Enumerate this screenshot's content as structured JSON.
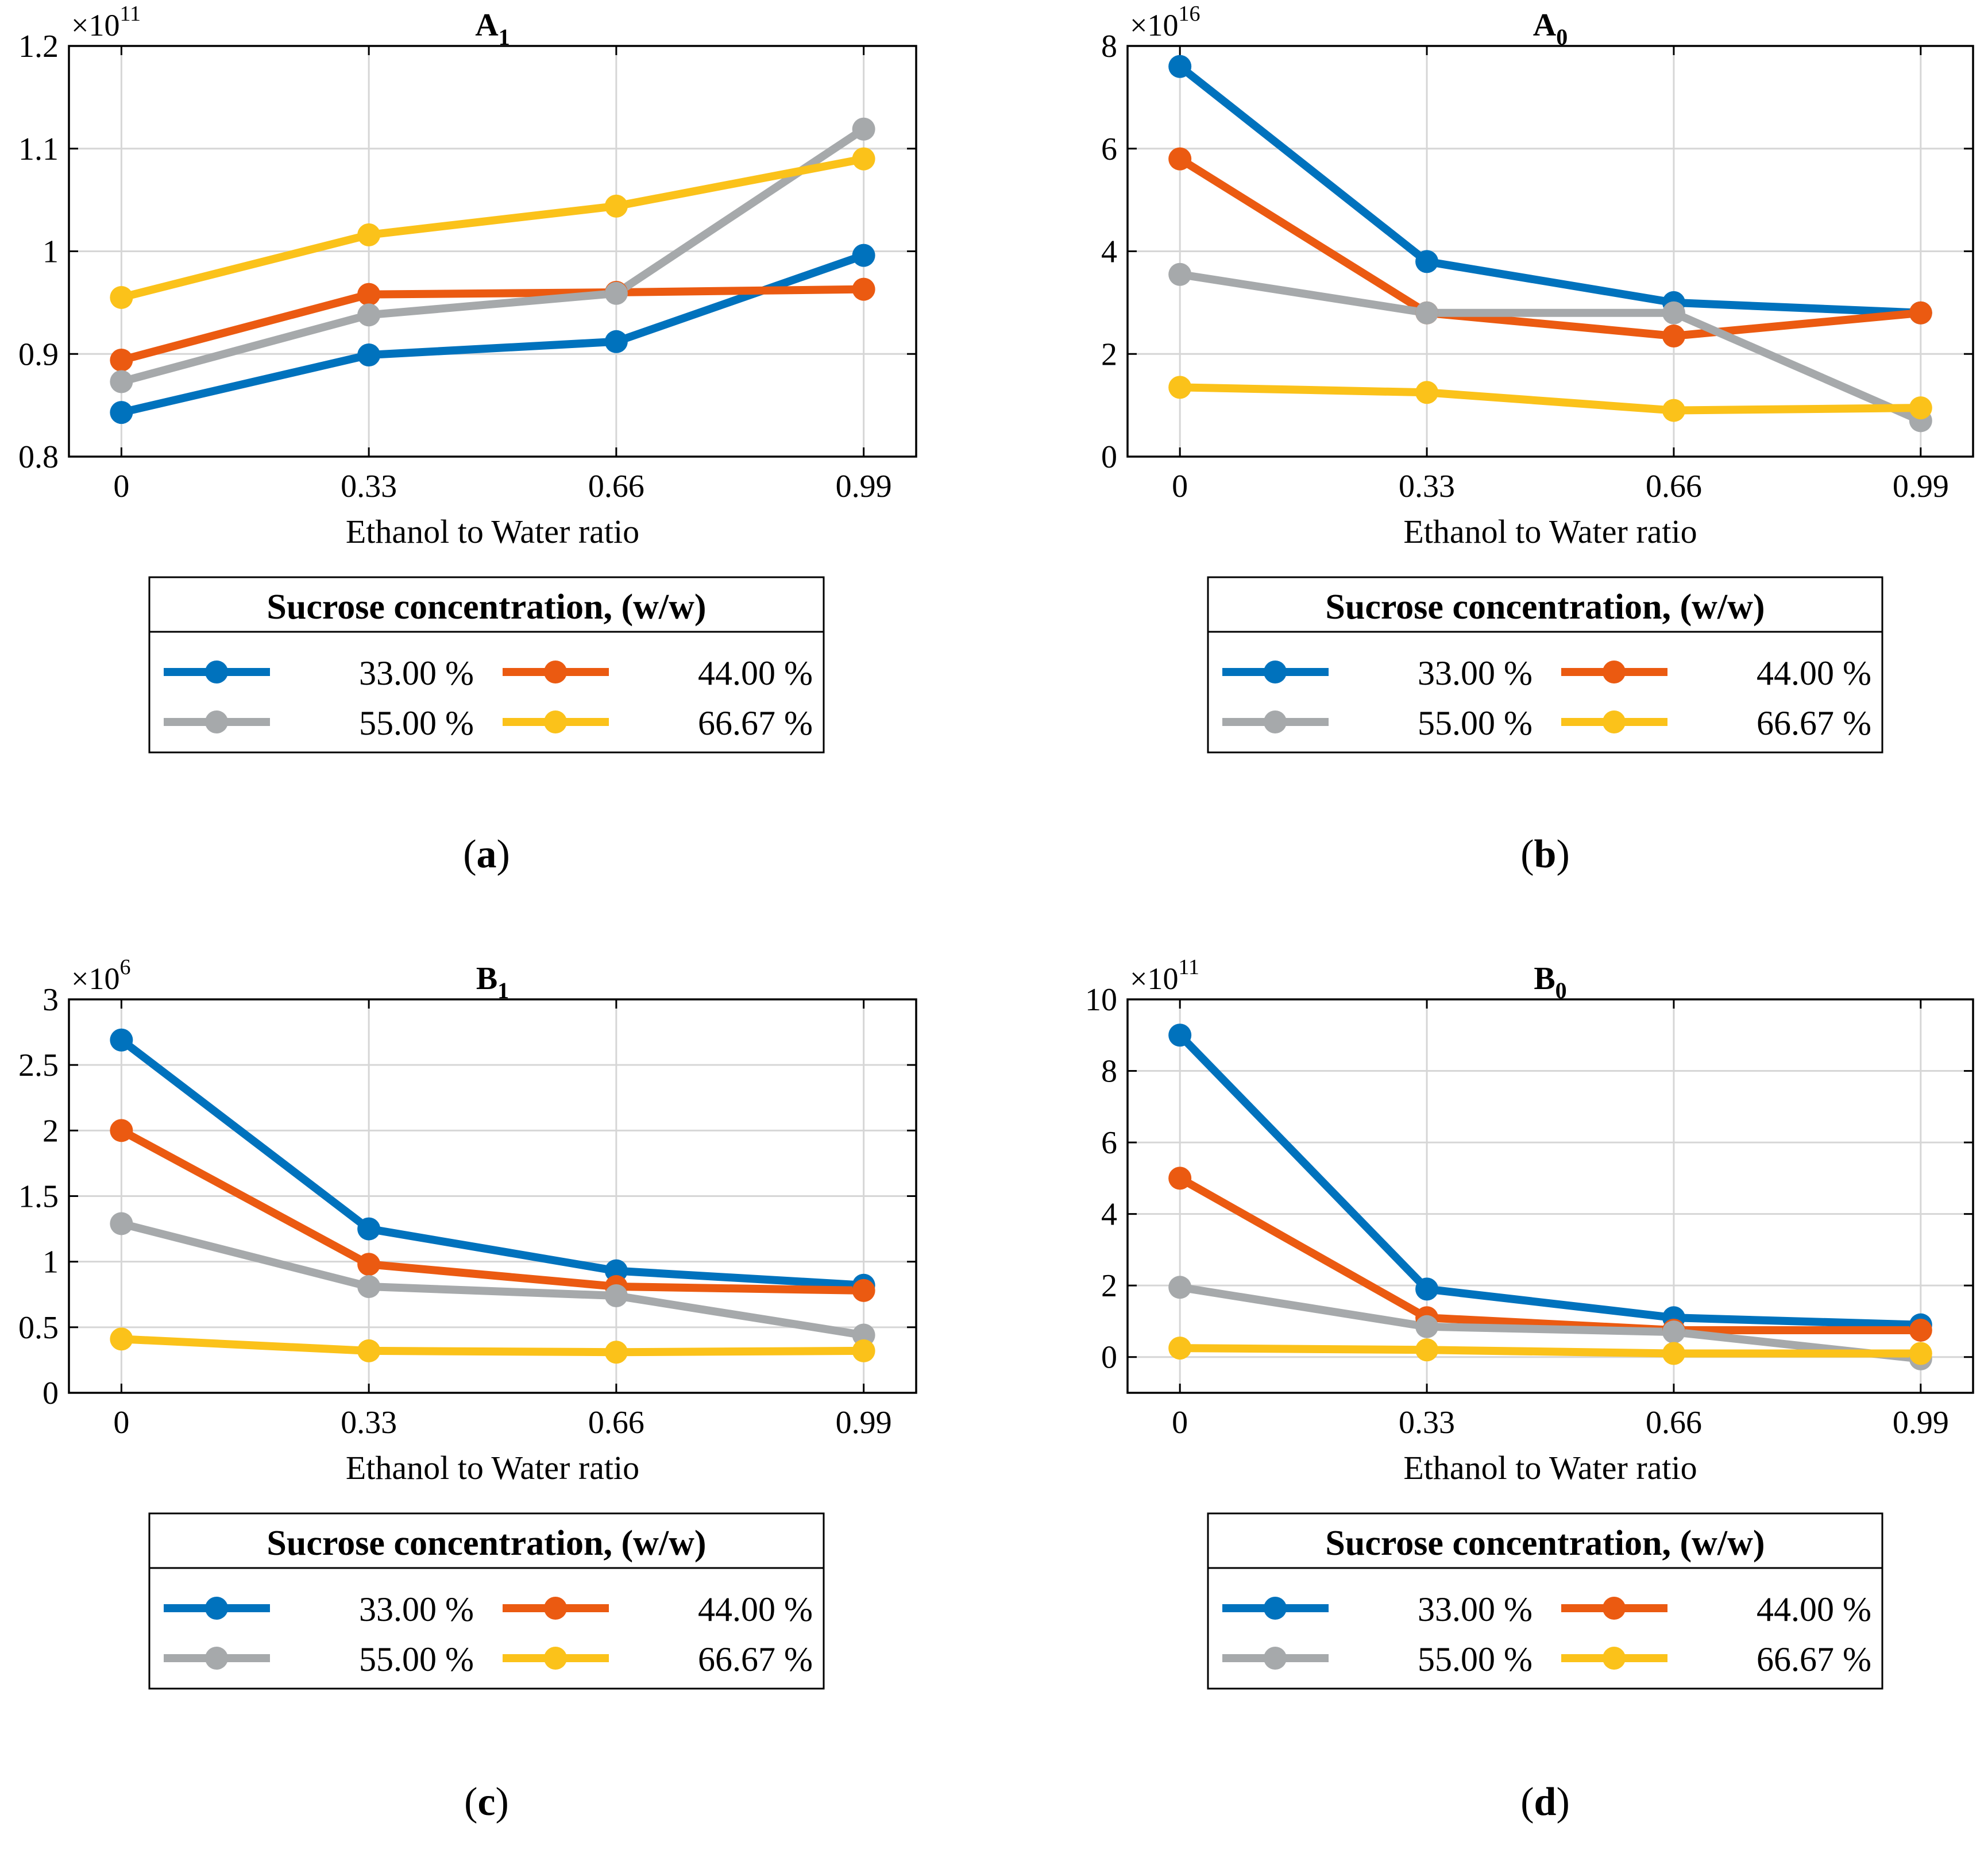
{
  "figure": {
    "xlabel": "Ethanol to Water ratio",
    "legend_title": "Sucrose concentration, (w/w)",
    "series_colors": [
      "#0072BD",
      "#EB5A11",
      "#A6A9AB",
      "#FBC21A"
    ]
  },
  "chart_data": [
    {
      "type": "line",
      "panel_label": "a",
      "title_base": "A",
      "title_sub": "1",
      "exponent_base": "×10",
      "exponent": "11",
      "xlabel": "Ethanol to Water ratio",
      "ylabel": "",
      "categories": [
        "0",
        "0.33",
        "0.66",
        "0.99"
      ],
      "x": [
        0,
        0.33,
        0.66,
        0.99
      ],
      "xlim": [
        -0.07,
        1.06
      ],
      "ylim": [
        0.8,
        1.2
      ],
      "yticks": [
        0.8,
        0.9,
        1.0,
        1.1,
        1.2
      ],
      "yticklabels": [
        "0.8",
        "0.9",
        "1",
        "1.1",
        "1.2"
      ],
      "grid": true,
      "legend_title": "Sucrose concentration, (w/w)",
      "legend_position": "below",
      "series": [
        {
          "name": "33.00 %",
          "values": [
            0.843,
            0.899,
            0.912,
            0.996
          ]
        },
        {
          "name": "44.00 %",
          "values": [
            0.894,
            0.958,
            0.96,
            0.963
          ]
        },
        {
          "name": "55.00 %",
          "values": [
            0.873,
            0.938,
            0.959,
            1.119
          ]
        },
        {
          "name": "66.67 %",
          "values": [
            0.955,
            1.016,
            1.044,
            1.09
          ]
        }
      ]
    },
    {
      "type": "line",
      "panel_label": "b",
      "title_base": "A",
      "title_sub": "0",
      "exponent_base": "×10",
      "exponent": "16",
      "xlabel": "Ethanol to Water ratio",
      "ylabel": "",
      "categories": [
        "0",
        "0.33",
        "0.66",
        "0.99"
      ],
      "x": [
        0,
        0.33,
        0.66,
        0.99
      ],
      "xlim": [
        -0.07,
        1.06
      ],
      "ylim": [
        0,
        8
      ],
      "yticks": [
        0,
        2,
        4,
        6,
        8
      ],
      "yticklabels": [
        "0",
        "2",
        "4",
        "6",
        "8"
      ],
      "grid": true,
      "legend_title": "Sucrose concentration, (w/w)",
      "legend_position": "below",
      "series": [
        {
          "name": "33.00 %",
          "values": [
            7.6,
            3.8,
            3.0,
            2.8
          ]
        },
        {
          "name": "44.00 %",
          "values": [
            5.8,
            2.8,
            2.35,
            2.8
          ]
        },
        {
          "name": "55.00 %",
          "values": [
            3.55,
            2.8,
            2.8,
            0.7
          ]
        },
        {
          "name": "66.67 %",
          "values": [
            1.35,
            1.25,
            0.9,
            0.95
          ]
        }
      ]
    },
    {
      "type": "line",
      "panel_label": "c",
      "title_base": "B",
      "title_sub": "1",
      "exponent_base": "×10",
      "exponent": "6",
      "xlabel": "Ethanol to Water ratio",
      "ylabel": "",
      "categories": [
        "0",
        "0.33",
        "0.66",
        "0.99"
      ],
      "x": [
        0,
        0.33,
        0.66,
        0.99
      ],
      "xlim": [
        -0.07,
        1.06
      ],
      "ylim": [
        0,
        3
      ],
      "yticks": [
        0,
        0.5,
        1,
        1.5,
        2,
        2.5,
        3
      ],
      "yticklabels": [
        "0",
        "0.5",
        "1",
        "1.5",
        "2",
        "2.5",
        "3"
      ],
      "grid": true,
      "legend_title": "Sucrose concentration, (w/w)",
      "legend_position": "below",
      "series": [
        {
          "name": "33.00 %",
          "values": [
            2.69,
            1.25,
            0.93,
            0.82
          ]
        },
        {
          "name": "44.00 %",
          "values": [
            2.0,
            0.98,
            0.81,
            0.78
          ]
        },
        {
          "name": "55.00 %",
          "values": [
            1.29,
            0.81,
            0.74,
            0.44
          ]
        },
        {
          "name": "66.67 %",
          "values": [
            0.41,
            0.32,
            0.31,
            0.32
          ]
        }
      ]
    },
    {
      "type": "line",
      "panel_label": "d",
      "title_base": "B",
      "title_sub": "0",
      "exponent_base": "×10",
      "exponent": "11",
      "xlabel": "Ethanol to Water ratio",
      "ylabel": "",
      "categories": [
        "0",
        "0.33",
        "0.66",
        "0.99"
      ],
      "x": [
        0,
        0.33,
        0.66,
        0.99
      ],
      "xlim": [
        -0.07,
        1.06
      ],
      "ylim": [
        -1,
        10
      ],
      "yticks": [
        0,
        2,
        4,
        6,
        8,
        10
      ],
      "yticklabels": [
        "0",
        "2",
        "4",
        "6",
        "8",
        "10"
      ],
      "grid": true,
      "legend_title": "Sucrose concentration, (w/w)",
      "legend_position": "below",
      "series": [
        {
          "name": "33.00 %",
          "values": [
            9.0,
            1.9,
            1.1,
            0.9
          ]
        },
        {
          "name": "44.00 %",
          "values": [
            5.0,
            1.1,
            0.75,
            0.75
          ]
        },
        {
          "name": "55.00 %",
          "values": [
            1.95,
            0.85,
            0.7,
            -0.05
          ]
        },
        {
          "name": "66.67 %",
          "values": [
            0.25,
            0.2,
            0.1,
            0.1
          ]
        }
      ]
    }
  ]
}
